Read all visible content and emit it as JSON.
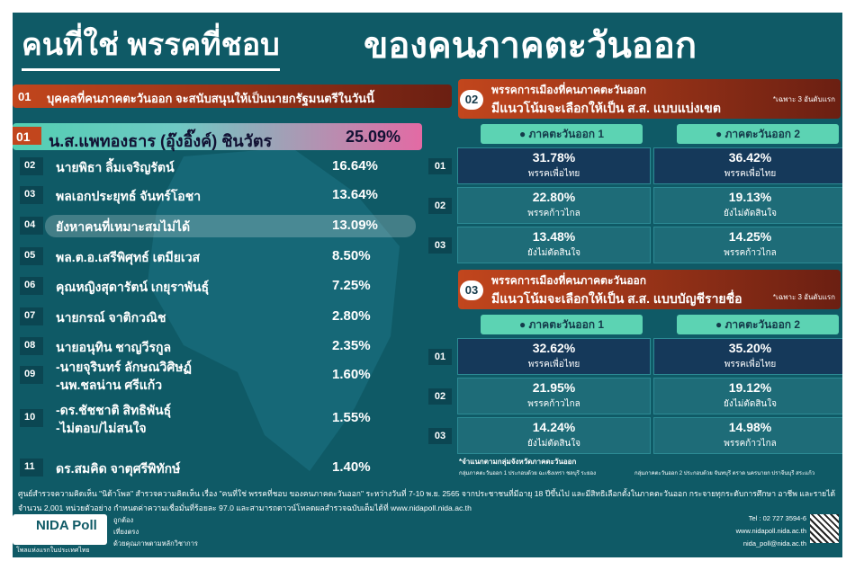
{
  "header": {
    "title_a": "คนที่ใช่ พรรคที่ชอบ",
    "title_b": "ของคนภาคตะวันออก"
  },
  "ranking": {
    "number": "01",
    "title": "บุคคลที่คนภาคตะวันออก จะสนับสนุนให้เป็นนายกรัฐมนตรีในวันนี้",
    "items": [
      {
        "rank": "01",
        "name": [
          "น.ส.แพทองธาร (อุ๊งอิ๊งค์) ชินวัตร"
        ],
        "percent": "25.09%"
      },
      {
        "rank": "02",
        "name": [
          "นายพิธา ลิ้มเจริญรัตน์"
        ],
        "percent": "16.64%"
      },
      {
        "rank": "03",
        "name": [
          "พลเอกประยุทธ์ จันทร์โอชา"
        ],
        "percent": "13.64%"
      },
      {
        "rank": "04",
        "name": [
          "ยังหาคนที่เหมาะสมไม่ได้"
        ],
        "percent": "13.09%"
      },
      {
        "rank": "05",
        "name": [
          "พล.ต.อ.เสรีพิศุทธ์ เตมียเวส"
        ],
        "percent": "8.50%"
      },
      {
        "rank": "06",
        "name": [
          "คุณหญิงสุดารัตน์ เกยุราพันธุ์"
        ],
        "percent": "7.25%"
      },
      {
        "rank": "07",
        "name": [
          "นายกรณ์ จาติกวณิช"
        ],
        "percent": "2.80%"
      },
      {
        "rank": "08",
        "name": [
          "นายอนุทิน ชาญวีรกูล"
        ],
        "percent": "2.35%"
      },
      {
        "rank": "09",
        "name": [
          "-นายจุรินทร์ ลักษณวิศิษฏ์",
          "-นพ.ชลน่าน ศรีแก้ว"
        ],
        "percent": "1.60%"
      },
      {
        "rank": "10",
        "name": [
          "-ดร.ชัชชาติ สิทธิพันธุ์",
          "-ไม่ตอบ/ไม่สนใจ"
        ],
        "percent": "1.55%"
      },
      {
        "rank": "11",
        "name": [
          "ดร.สมคิด จาตุศรีพิทักษ์"
        ],
        "percent": "1.40%"
      }
    ]
  },
  "constituency": {
    "number": "02",
    "title": [
      "พรรคการเมืองที่คนภาคตะวันออก",
      "มีแนวโน้มจะเลือกให้เป็น ส.ส. แบบแบ่งเขต"
    ],
    "note": "*เฉพาะ 3 อันดับแรก",
    "columns": [
      "ภาคตะวันออก 1",
      "ภาคตะวันออก 2"
    ],
    "rows": [
      {
        "rank": "01",
        "cells": [
          {
            "percent": "31.78%",
            "party": "พรรคเพื่อไทย"
          },
          {
            "percent": "36.42%",
            "party": "พรรคเพื่อไทย"
          }
        ]
      },
      {
        "rank": "02",
        "cells": [
          {
            "percent": "22.80%",
            "party": "พรรคก้าวไกล"
          },
          {
            "percent": "19.13%",
            "party": "ยังไม่ตัดสินใจ"
          }
        ]
      },
      {
        "rank": "03",
        "cells": [
          {
            "percent": "13.48%",
            "party": "ยังไม่ตัดสินใจ"
          },
          {
            "percent": "14.25%",
            "party": "พรรคก้าวไกล"
          }
        ]
      }
    ]
  },
  "party_list": {
    "number": "03",
    "title": [
      "พรรคการเมืองที่คนภาคตะวันออก",
      "มีแนวโน้มจะเลือกให้เป็น ส.ส. แบบบัญชีรายชื่อ"
    ],
    "note": "*เฉพาะ 3 อันดับแรก",
    "columns": [
      "ภาคตะวันออก 1",
      "ภาคตะวันออก 2"
    ],
    "rows": [
      {
        "rank": "01",
        "cells": [
          {
            "percent": "32.62%",
            "party": "พรรคเพื่อไทย"
          },
          {
            "percent": "35.20%",
            "party": "พรรคเพื่อไทย"
          }
        ]
      },
      {
        "rank": "02",
        "cells": [
          {
            "percent": "21.95%",
            "party": "พรรคก้าวไกล"
          },
          {
            "percent": "19.12%",
            "party": "ยังไม่ตัดสินใจ"
          }
        ]
      },
      {
        "rank": "03",
        "cells": [
          {
            "percent": "14.24%",
            "party": "ยังไม่ตัดสินใจ"
          },
          {
            "percent": "14.98%",
            "party": "พรรคก้าวไกล"
          }
        ]
      }
    ]
  },
  "footnote": "*จำแนกตามกลุ่มจังหวัดภาคตะวันออก",
  "legend": [
    "กลุ่มภาคตะวันออก 1 ประกอบด้วย ฉะเชิงเทรา ชลบุรี ระยอง",
    "กลุ่มภาคตะวันออก 2 ประกอบด้วย จันทบุรี ตราด นครนายก ปราจีนบุรี สระแก้ว"
  ],
  "footer": {
    "lines": [
      "ศูนย์สำรวจความคิดเห็น \"นิด้าโพล\" สำรวจความคิดเห็น เรื่อง \"คนที่ใช่ พรรคที่ชอบ ของคนภาคตะวันออก\" ระหว่างวันที่ 7-10 พ.ย. 2565 จากประชาชนที่มีอายุ 18 ปีขึ้นไป และมีสิทธิเลือกตั้งในภาคตะวันออก กระจายทุกระดับการศึกษา อาชีพ และรายได้",
      "จำนวน 2,001 หน่วยตัวอย่าง กำหนดค่าความเชื่อมั่นที่ร้อยละ 97.0 และสามารถดาวน์โหลดผลสำรวจฉบับเต็มได้ที่ www.nidapoll.nida.ac.th"
    ],
    "logo": "NIDA Poll",
    "logo_tagline": "โพลแห่งแรกในประเทศไทย",
    "values": [
      "ถูกต้อง",
      "เที่ยงตรง",
      "ด้วยคุณภาพตามหลักวิชาการ"
    ],
    "contact": [
      "Tel : 02 727 3594-6",
      "www.nidapoll.nida.ac.th",
      "nida_poll@nida.ac.th"
    ]
  }
}
